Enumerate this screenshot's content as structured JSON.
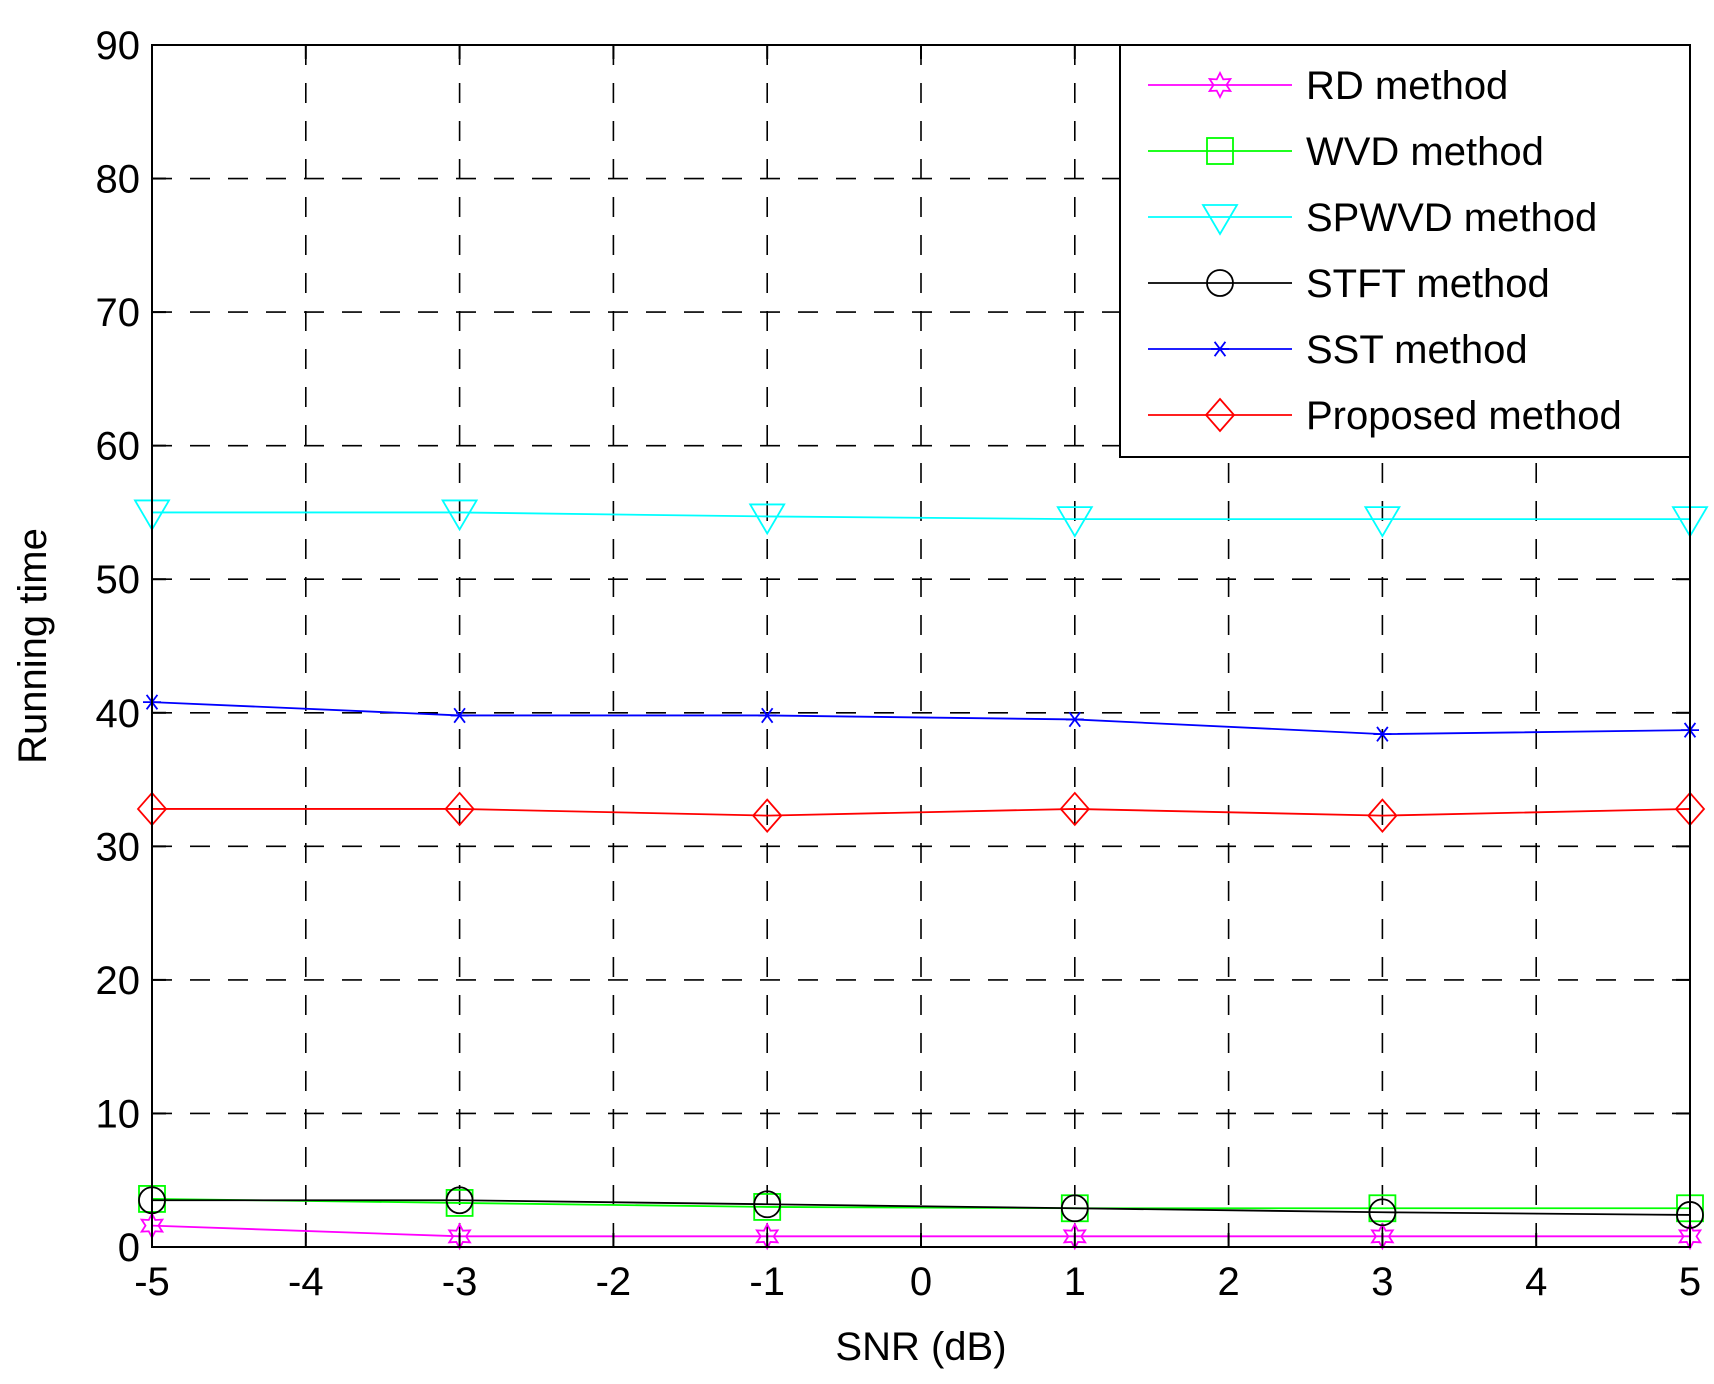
{
  "chart_data": {
    "type": "line",
    "xlabel": "SNR (dB)",
    "ylabel": "Running time",
    "xlim": [
      -5,
      5
    ],
    "ylim": [
      0,
      90
    ],
    "xticks": [
      "-5",
      "-4",
      "-3",
      "-2",
      "-1",
      "0",
      "1",
      "2",
      "3",
      "4",
      "5"
    ],
    "yticks": [
      "0",
      "10",
      "20",
      "30",
      "40",
      "50",
      "60",
      "70",
      "80",
      "90"
    ],
    "grid": true,
    "legend_position": "top-right",
    "x": [
      -5,
      -3,
      -1,
      1,
      3,
      5
    ],
    "series": [
      {
        "name": "RD method",
        "color": "#ff00ff",
        "marker": "hexagram",
        "values": [
          1.6,
          0.8,
          0.8,
          0.8,
          0.8,
          0.8
        ]
      },
      {
        "name": "WVD method",
        "color": "#00ff00",
        "marker": "square",
        "values": [
          3.6,
          3.3,
          3.0,
          2.9,
          2.9,
          2.9
        ]
      },
      {
        "name": "SPWVD method",
        "color": "#00ffff",
        "marker": "triangle-down",
        "values": [
          55.0,
          55.0,
          54.7,
          54.5,
          54.5,
          54.5
        ]
      },
      {
        "name": "STFT method",
        "color": "#000000",
        "marker": "circle",
        "values": [
          3.5,
          3.5,
          3.2,
          2.9,
          2.6,
          2.4
        ]
      },
      {
        "name": "SST method",
        "color": "#0000ff",
        "marker": "asterisk",
        "values": [
          40.8,
          39.8,
          39.8,
          39.5,
          38.4,
          38.7
        ]
      },
      {
        "name": "Proposed method",
        "color": "#ff0000",
        "marker": "diamond",
        "values": [
          32.8,
          32.8,
          32.3,
          32.8,
          32.3,
          32.8
        ]
      }
    ]
  }
}
